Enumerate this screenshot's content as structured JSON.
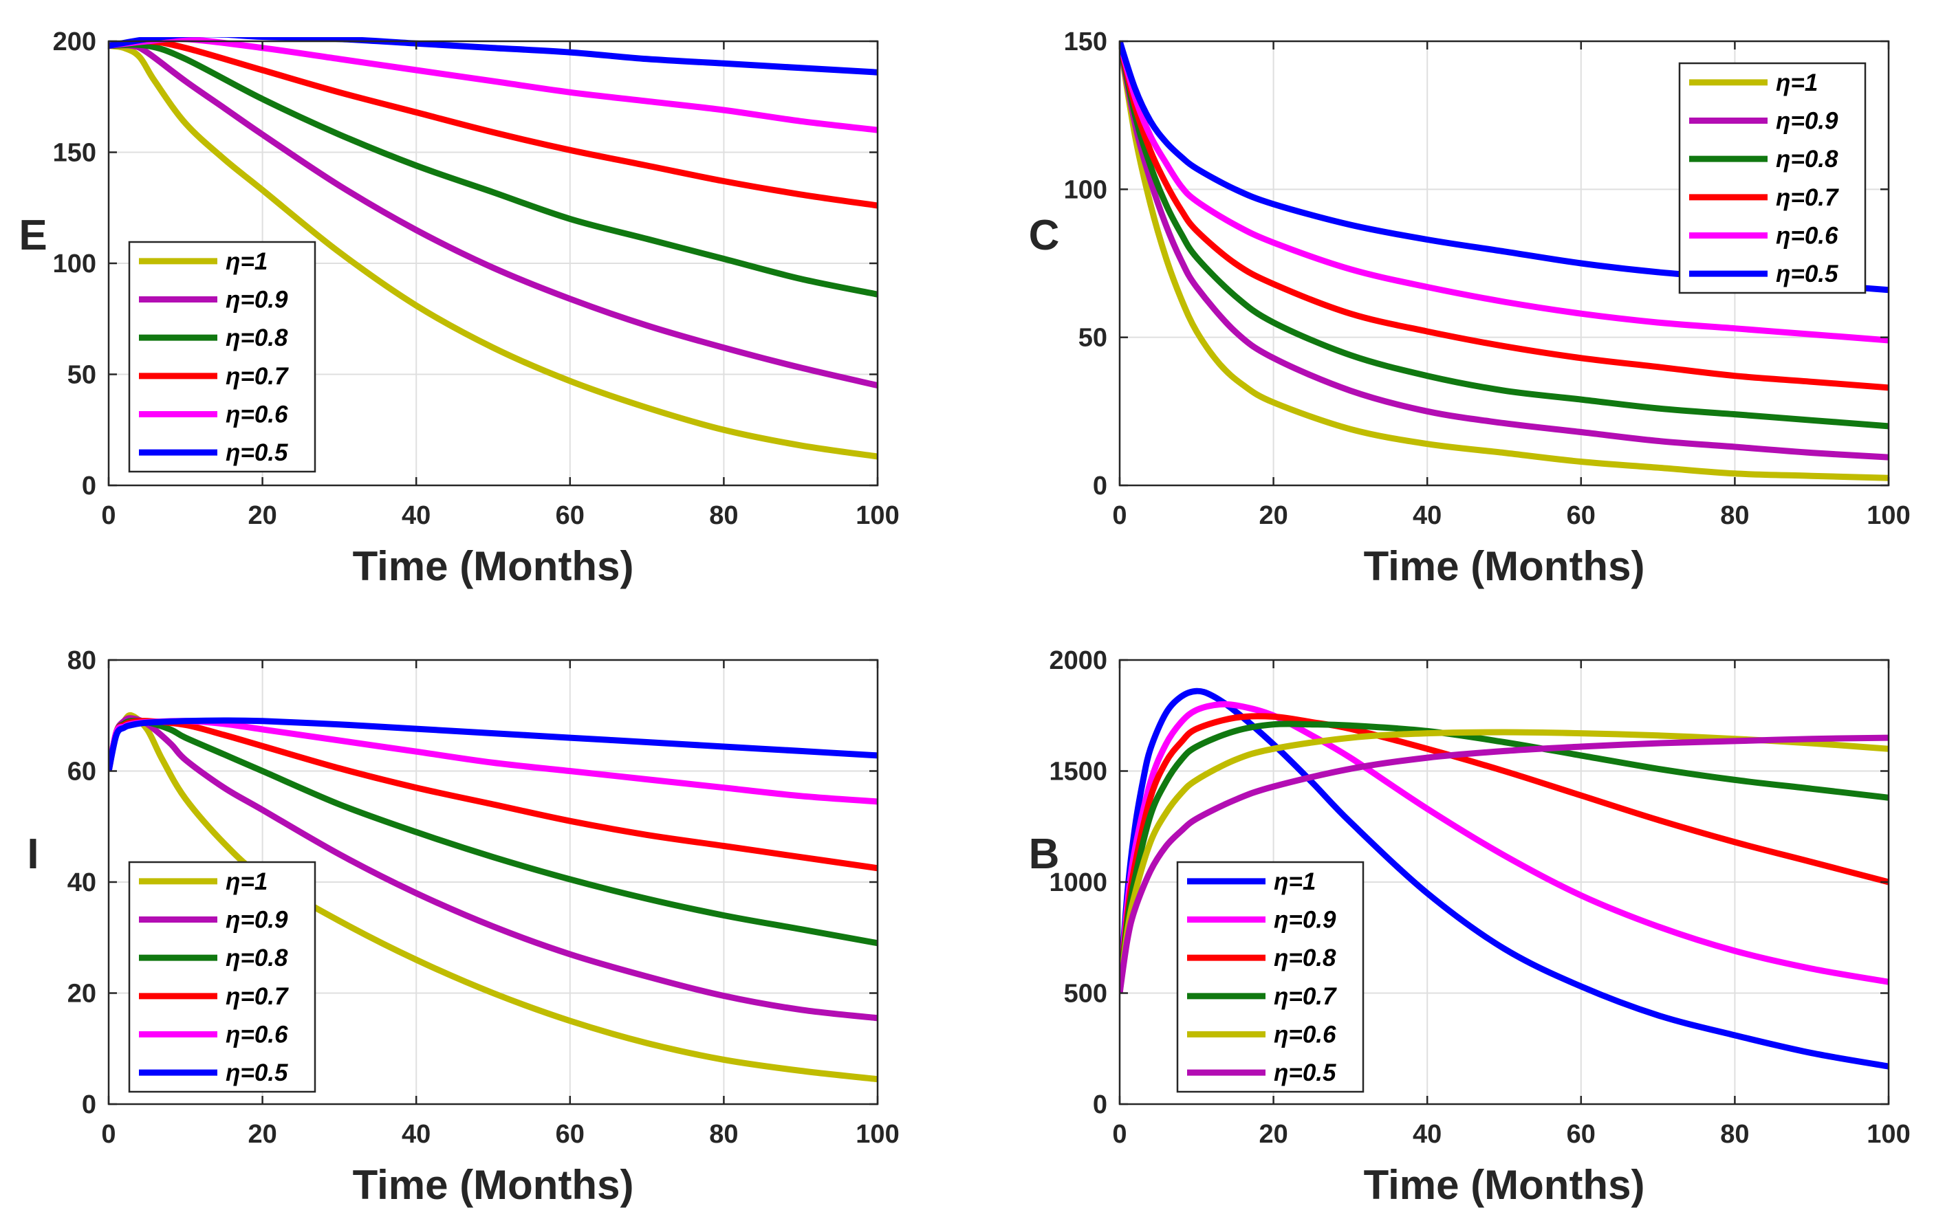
{
  "figure": {
    "panels": [
      {
        "id": "E",
        "ylabel": "E",
        "xlabel": "Time (Months)",
        "xlim": [
          0,
          100
        ],
        "ylim": [
          0,
          200
        ],
        "xticks": [
          0,
          20,
          40,
          60,
          80,
          100
        ],
        "yticks": [
          0,
          50,
          100,
          150,
          200
        ],
        "legend_position": "lower-left"
      },
      {
        "id": "C",
        "ylabel": "C",
        "xlabel": "Time (Months)",
        "xlim": [
          0,
          100
        ],
        "ylim": [
          0,
          150
        ],
        "xticks": [
          0,
          20,
          40,
          60,
          80,
          100
        ],
        "yticks": [
          0,
          50,
          100,
          150
        ],
        "legend_position": "top-right"
      },
      {
        "id": "I",
        "ylabel": "I",
        "xlabel": "Time (Months)",
        "xlim": [
          0,
          100
        ],
        "ylim": [
          0,
          80
        ],
        "xticks": [
          0,
          20,
          40,
          60,
          80,
          100
        ],
        "yticks": [
          0,
          20,
          40,
          60,
          80
        ],
        "legend_position": "lower-left"
      },
      {
        "id": "B",
        "ylabel": "B",
        "xlabel": "Time (Months)",
        "xlim": [
          0,
          100
        ],
        "ylim": [
          0,
          2000
        ],
        "xticks": [
          0,
          20,
          40,
          60,
          80,
          100
        ],
        "yticks": [
          0,
          500,
          1000,
          1500,
          2000
        ],
        "legend_position": "lower-left"
      }
    ]
  },
  "chart_data": [
    {
      "type": "line",
      "title": "",
      "xlabel": "Time (Months)",
      "ylabel": "E",
      "xlim": [
        0,
        100
      ],
      "ylim": [
        0,
        200
      ],
      "grid": true,
      "legend": "lower-left",
      "series": [
        {
          "name": "η=1",
          "color": "#c0bc00",
          "x": [
            0,
            2,
            4,
            6,
            10,
            15,
            20,
            30,
            40,
            50,
            60,
            70,
            80,
            90,
            100
          ],
          "y": [
            198,
            197,
            193,
            182,
            163,
            147,
            133,
            105,
            81,
            62,
            47,
            35,
            25,
            18,
            13
          ]
        },
        {
          "name": "η=0.9",
          "color": "#b30db3",
          "x": [
            0,
            3,
            5,
            10,
            15,
            20,
            30,
            40,
            50,
            60,
            70,
            80,
            90,
            100
          ],
          "y": [
            198,
            198,
            195,
            182,
            170,
            158,
            135,
            115,
            98,
            84,
            72,
            62,
            53,
            45
          ]
        },
        {
          "name": "η=0.8",
          "color": "#107810",
          "x": [
            0,
            5,
            10,
            20,
            30,
            40,
            50,
            60,
            70,
            80,
            90,
            100
          ],
          "y": [
            198,
            198,
            192,
            174,
            158,
            144,
            132,
            120,
            111,
            102,
            93,
            86
          ]
        },
        {
          "name": "η=0.7",
          "color": "#ff0000",
          "x": [
            0,
            5,
            10,
            20,
            30,
            40,
            50,
            60,
            70,
            80,
            90,
            100
          ],
          "y": [
            198,
            200,
            197,
            187,
            177,
            168,
            159,
            151,
            144,
            137,
            131,
            126
          ]
        },
        {
          "name": "η=0.6",
          "color": "#ff00ff",
          "x": [
            0,
            5,
            10,
            20,
            30,
            40,
            50,
            60,
            70,
            80,
            90,
            100
          ],
          "y": [
            198,
            200,
            201,
            197,
            192,
            187,
            182,
            177,
            173,
            169,
            164,
            160
          ]
        },
        {
          "name": "η=0.5",
          "color": "#0000ff",
          "x": [
            0,
            5,
            10,
            15,
            20,
            30,
            40,
            50,
            60,
            70,
            80,
            90,
            100
          ],
          "y": [
            198,
            201,
            203,
            203,
            202,
            201,
            199,
            197,
            195,
            192,
            190,
            188,
            186
          ]
        }
      ]
    },
    {
      "type": "line",
      "title": "",
      "xlabel": "Time (Months)",
      "ylabel": "C",
      "xlim": [
        0,
        100
      ],
      "ylim": [
        0,
        150
      ],
      "grid": true,
      "legend": "top-right",
      "series": [
        {
          "name": "η=1",
          "color": "#c0bc00",
          "x": [
            0,
            2,
            4,
            6,
            8,
            10,
            13,
            16,
            20,
            30,
            40,
            50,
            60,
            70,
            80,
            90,
            100
          ],
          "y": [
            150,
            118,
            95,
            77,
            63,
            52,
            41,
            34,
            28,
            19,
            14,
            11,
            8,
            6,
            4,
            3.2,
            2.5
          ]
        },
        {
          "name": "η=0.9",
          "color": "#b30db3",
          "x": [
            0,
            2,
            4,
            6,
            8,
            10,
            15,
            20,
            30,
            40,
            50,
            60,
            70,
            80,
            90,
            100
          ],
          "y": [
            150,
            122,
            103,
            88,
            76,
            67,
            52,
            43,
            32,
            25,
            21,
            18,
            15,
            13,
            11,
            9.5
          ]
        },
        {
          "name": "η=0.8",
          "color": "#107810",
          "x": [
            0,
            2,
            4,
            6,
            8,
            10,
            15,
            20,
            30,
            40,
            50,
            60,
            70,
            80,
            90,
            100
          ],
          "y": [
            150,
            125,
            108,
            95,
            85,
            77,
            64,
            55,
            44,
            37,
            32,
            29,
            26,
            24,
            22,
            20
          ]
        },
        {
          "name": "η=0.7",
          "color": "#ff0000",
          "x": [
            0,
            2,
            4,
            6,
            8,
            10,
            15,
            20,
            30,
            40,
            50,
            60,
            70,
            80,
            90,
            100
          ],
          "y": [
            150,
            128,
            113,
            102,
            93,
            86,
            75,
            68,
            58,
            52,
            47,
            43,
            40,
            37,
            35,
            33
          ]
        },
        {
          "name": "η=0.6",
          "color": "#ff00ff",
          "x": [
            0,
            2,
            4,
            6,
            8,
            10,
            15,
            20,
            30,
            40,
            50,
            60,
            70,
            80,
            90,
            100
          ],
          "y": [
            150,
            131,
            118,
            109,
            101,
            96,
            88,
            82,
            73,
            67,
            62,
            58,
            55,
            53,
            51,
            49
          ]
        },
        {
          "name": "η=0.5",
          "color": "#0000ff",
          "x": [
            0,
            2,
            4,
            6,
            8,
            10,
            15,
            20,
            30,
            40,
            50,
            60,
            70,
            80,
            90,
            100
          ],
          "y": [
            150,
            134,
            123,
            116,
            111,
            107,
            100,
            95,
            88,
            83,
            79,
            75,
            72,
            70,
            68,
            66
          ]
        }
      ]
    },
    {
      "type": "line",
      "title": "",
      "xlabel": "Time (Months)",
      "ylabel": "I",
      "xlim": [
        0,
        100
      ],
      "ylim": [
        0,
        80
      ],
      "grid": true,
      "legend": "lower-left",
      "series": [
        {
          "name": "η=1",
          "color": "#c0bc00",
          "x": [
            0,
            1,
            2,
            3,
            5,
            7,
            10,
            15,
            20,
            30,
            40,
            50,
            60,
            70,
            80,
            90,
            100
          ],
          "y": [
            60,
            67,
            69,
            70,
            67.5,
            62,
            55,
            47,
            41,
            33,
            26,
            20,
            15,
            11,
            8,
            6,
            4.5
          ]
        },
        {
          "name": "η=0.9",
          "color": "#b30db3",
          "x": [
            0,
            1,
            2,
            3,
            5,
            8,
            10,
            15,
            20,
            30,
            40,
            50,
            60,
            70,
            80,
            90,
            100
          ],
          "y": [
            60,
            67,
            69,
            69.5,
            68.5,
            65,
            62,
            57,
            53,
            45,
            38,
            32,
            27,
            23,
            19.5,
            17,
            15.5
          ]
        },
        {
          "name": "η=0.8",
          "color": "#107810",
          "x": [
            0,
            1,
            2,
            3,
            5,
            8,
            10,
            15,
            20,
            30,
            40,
            50,
            60,
            70,
            80,
            90,
            100
          ],
          "y": [
            60,
            67,
            68.5,
            69,
            68.8,
            67.5,
            66,
            63,
            60,
            54,
            49,
            44.5,
            40.5,
            37,
            34,
            31.5,
            29
          ]
        },
        {
          "name": "η=0.7",
          "color": "#ff0000",
          "x": [
            0,
            1,
            2,
            3,
            5,
            10,
            15,
            20,
            30,
            40,
            50,
            60,
            70,
            80,
            90,
            100
          ],
          "y": [
            60,
            67,
            68.3,
            68.8,
            69,
            68.3,
            66.5,
            64.5,
            60.5,
            57,
            54,
            51,
            48.5,
            46.5,
            44.5,
            42.5
          ]
        },
        {
          "name": "η=0.6",
          "color": "#ff00ff",
          "x": [
            0,
            1,
            2,
            3,
            5,
            10,
            15,
            20,
            30,
            40,
            50,
            60,
            70,
            80,
            90,
            100
          ],
          "y": [
            60,
            67,
            68,
            68.5,
            68.8,
            69,
            68.5,
            67.5,
            65.5,
            63.5,
            61.5,
            60,
            58.5,
            57,
            55.5,
            54.5
          ]
        },
        {
          "name": "η=0.5",
          "color": "#0000ff",
          "x": [
            0,
            1,
            2,
            3,
            5,
            10,
            15,
            20,
            30,
            40,
            50,
            60,
            70,
            80,
            90,
            100
          ],
          "y": [
            60,
            66.5,
            67.8,
            68.3,
            68.7,
            69,
            69.1,
            69,
            68.4,
            67.6,
            66.8,
            66,
            65.2,
            64.4,
            63.6,
            62.8
          ]
        }
      ]
    },
    {
      "type": "line",
      "title": "",
      "xlabel": "Time (Months)",
      "ylabel": "B",
      "xlim": [
        0,
        100
      ],
      "ylim": [
        0,
        2000
      ],
      "grid": true,
      "legend": "lower-left",
      "series": [
        {
          "name": "η=1",
          "color": "#0000ff",
          "x": [
            0,
            1,
            2,
            3,
            4,
            6,
            8,
            10,
            12,
            15,
            20,
            25,
            30,
            40,
            50,
            60,
            70,
            80,
            90,
            100
          ],
          "y": [
            500,
            950,
            1250,
            1450,
            1600,
            1760,
            1835,
            1860,
            1840,
            1770,
            1620,
            1450,
            1270,
            950,
            700,
            530,
            400,
            310,
            230,
            170
          ]
        },
        {
          "name": "η=0.9",
          "color": "#ff00ff",
          "x": [
            0,
            1,
            2,
            4,
            6,
            8,
            10,
            13,
            16,
            20,
            25,
            30,
            40,
            50,
            60,
            70,
            80,
            90,
            100
          ],
          "y": [
            500,
            900,
            1150,
            1450,
            1620,
            1720,
            1775,
            1800,
            1790,
            1750,
            1660,
            1560,
            1330,
            1120,
            940,
            800,
            690,
            610,
            550
          ]
        },
        {
          "name": "η=0.8",
          "color": "#ff0000",
          "x": [
            0,
            1,
            2,
            4,
            6,
            8,
            10,
            15,
            20,
            25,
            30,
            40,
            50,
            60,
            70,
            80,
            90,
            100
          ],
          "y": [
            500,
            850,
            1080,
            1380,
            1540,
            1630,
            1690,
            1740,
            1745,
            1720,
            1690,
            1600,
            1500,
            1390,
            1280,
            1180,
            1090,
            1000
          ]
        },
        {
          "name": "η=0.7",
          "color": "#107810",
          "x": [
            0,
            1,
            2,
            4,
            6,
            8,
            10,
            15,
            20,
            25,
            30,
            40,
            50,
            60,
            70,
            80,
            90,
            100
          ],
          "y": [
            500,
            820,
            1020,
            1300,
            1450,
            1550,
            1610,
            1680,
            1710,
            1710,
            1705,
            1680,
            1630,
            1570,
            1510,
            1460,
            1420,
            1380
          ]
        },
        {
          "name": "η=0.6",
          "color": "#c0bc00",
          "x": [
            0,
            1,
            2,
            4,
            6,
            8,
            10,
            15,
            20,
            30,
            40,
            50,
            60,
            70,
            80,
            90,
            100
          ],
          "y": [
            500,
            780,
            950,
            1180,
            1310,
            1400,
            1460,
            1550,
            1600,
            1650,
            1670,
            1675,
            1670,
            1660,
            1645,
            1625,
            1600
          ]
        },
        {
          "name": "η=0.5",
          "color": "#b30db3",
          "x": [
            0,
            1,
            2,
            4,
            6,
            8,
            10,
            15,
            20,
            30,
            40,
            50,
            60,
            70,
            80,
            90,
            100
          ],
          "y": [
            500,
            740,
            880,
            1050,
            1160,
            1230,
            1285,
            1370,
            1430,
            1510,
            1560,
            1590,
            1610,
            1625,
            1635,
            1645,
            1650
          ]
        }
      ]
    }
  ]
}
